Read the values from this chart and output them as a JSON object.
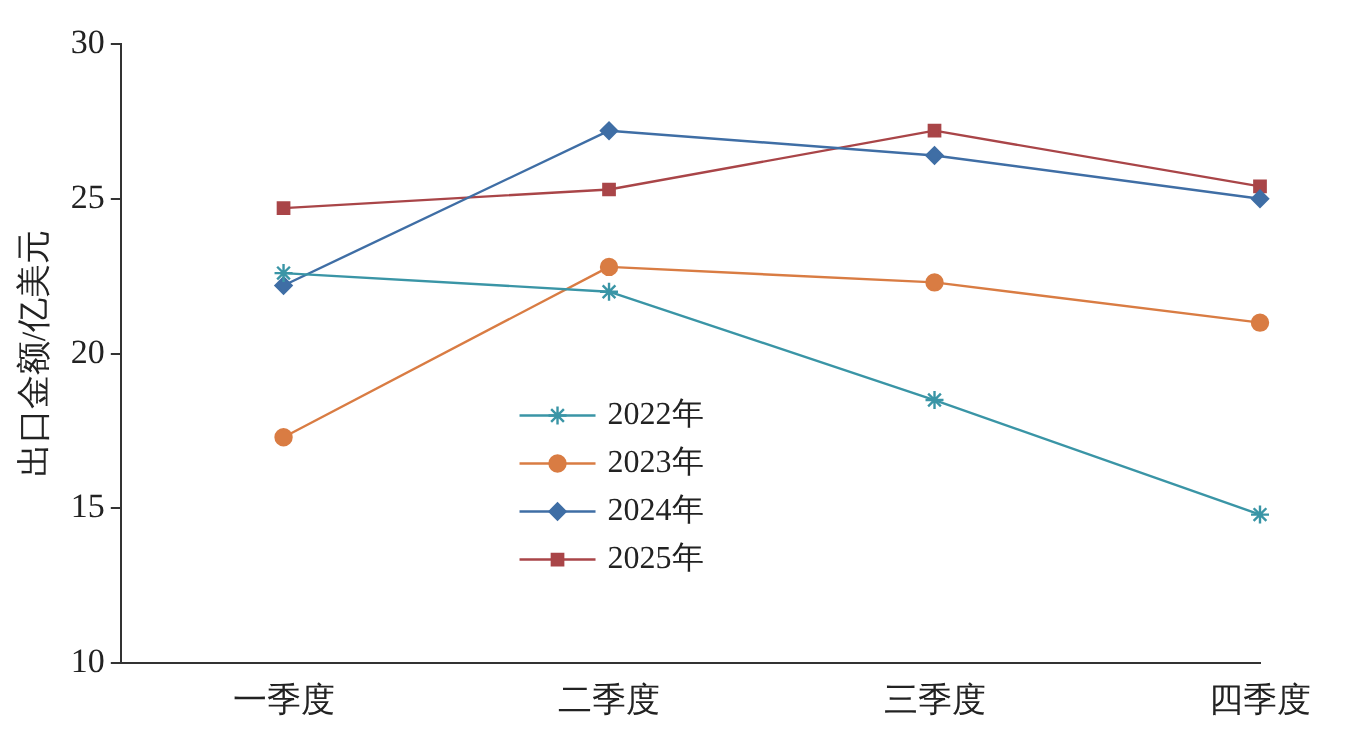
{
  "chart_data": {
    "type": "line",
    "ylabel": "出口金额/亿美元",
    "categories": [
      "一季度",
      "二季度",
      "三季度",
      "四季度"
    ],
    "ylim": [
      10,
      30
    ],
    "yticks": [
      10,
      15,
      20,
      25,
      30
    ],
    "grid": false,
    "legend": "bottom left",
    "series": [
      {
        "name": "2022年",
        "color": "#3a95a6",
        "marker": "cross",
        "values": [
          22.6,
          22.0,
          18.5,
          14.8
        ]
      },
      {
        "name": "2023年",
        "color": "#d97c43",
        "marker": "circle",
        "values": [
          17.3,
          22.8,
          22.3,
          21.0
        ]
      },
      {
        "name": "2024年",
        "color": "#3f6ea5",
        "marker": "diamond",
        "values": [
          22.2,
          27.2,
          26.4,
          25.0
        ]
      },
      {
        "name": "2025年",
        "color": "#a94548",
        "marker": "square",
        "values": [
          24.7,
          25.3,
          27.2,
          25.4
        ]
      }
    ]
  }
}
